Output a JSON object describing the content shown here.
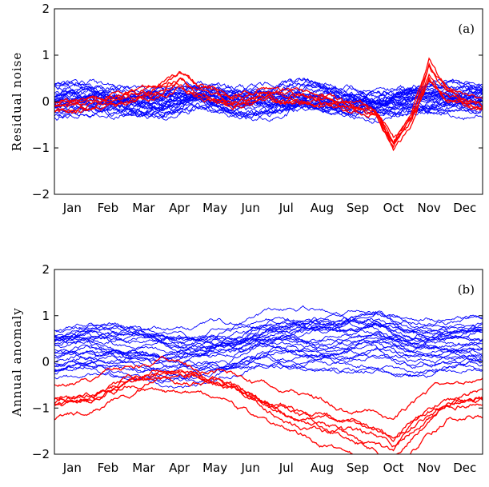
{
  "chart_data": [
    {
      "type": "line",
      "panel_label": "(a)",
      "ylabel": "Residual noise",
      "xlabel": "",
      "categories": [
        "Jan",
        "Feb",
        "Mar",
        "Apr",
        "May",
        "Jun",
        "Jul",
        "Aug",
        "Sep",
        "Oct",
        "Nov",
        "Dec"
      ],
      "y_ticks": [
        "−2",
        "−1",
        "0",
        "1",
        "2"
      ],
      "ylim": [
        -2,
        2
      ],
      "xlim": [
        0,
        12
      ],
      "grid": false,
      "legend": "none",
      "colors": {
        "background_series": "#0000ff",
        "highlight_series": "#ff0000"
      },
      "series_groups": [
        {
          "color": "#0000ff",
          "count": 30,
          "description": "noise around zero, amplitude ~0.3, occasional excursions to ±0.7",
          "sample_means": [
            0.05,
            0.1,
            0.0,
            -0.05,
            0.1,
            0.0,
            0.05,
            0.15,
            0.0,
            -0.1,
            0.05,
            0.1
          ]
        },
        {
          "color": "#ff0000",
          "count": 6,
          "sample_key_points": {
            "x": [
              0,
              1,
              2,
              3,
              3.5,
              4,
              5,
              6,
              7,
              8,
              9,
              9.2,
              9.5,
              10,
              10.5,
              11,
              12
            ],
            "y": [
              -0.1,
              0.0,
              0.1,
              0.3,
              0.55,
              0.3,
              0.0,
              0.2,
              0.1,
              0.0,
              -0.2,
              -0.5,
              -0.95,
              -0.4,
              0.7,
              0.2,
              -0.1
            ]
          }
        }
      ]
    },
    {
      "type": "line",
      "panel_label": "(b)",
      "ylabel": "Annual anomaly",
      "xlabel": "",
      "categories": [
        "Jan",
        "Feb",
        "Mar",
        "Apr",
        "May",
        "Jun",
        "Jul",
        "Aug",
        "Sep",
        "Oct",
        "Nov",
        "Dec"
      ],
      "y_ticks": [
        "−2",
        "−1",
        "0",
        "1",
        "2"
      ],
      "ylim": [
        -2,
        2
      ],
      "xlim": [
        0,
        12
      ],
      "grid": false,
      "legend": "none",
      "colors": {
        "background_series": "#0000ff",
        "highlight_series": "#ff0000"
      },
      "series_groups": [
        {
          "color": "#0000ff",
          "count": 28,
          "description": "annual anomaly curves mostly between -0.8 and 1.5, peak near Oct (~1.5)",
          "sample_means": [
            0.2,
            0.3,
            0.2,
            0.1,
            0.1,
            0.2,
            0.4,
            0.4,
            0.4,
            0.5,
            0.3,
            0.3
          ]
        },
        {
          "color": "#ff0000",
          "count": 7,
          "sample_key_points": {
            "x": [
              0,
              1,
              2,
              3,
              4,
              5,
              6,
              7,
              8,
              9,
              9.5,
              10,
              11,
              12
            ],
            "y": [
              -0.9,
              -0.8,
              -0.5,
              -0.3,
              -0.4,
              -0.6,
              -1.0,
              -1.3,
              -1.5,
              -1.7,
              -1.9,
              -1.5,
              -0.9,
              -0.8
            ]
          }
        }
      ]
    }
  ]
}
